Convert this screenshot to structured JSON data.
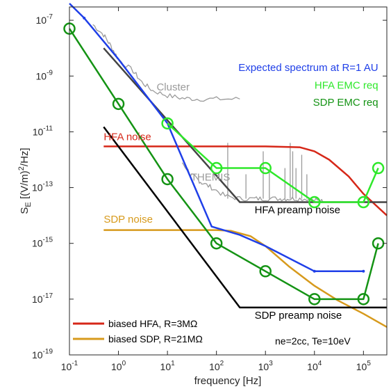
{
  "chart_data": {
    "type": "line",
    "title": "",
    "xlabel": "frequency [Hz]",
    "ylabel": {
      "main": "S",
      "sub": "E",
      "rest": " [(V/m)",
      "sup": "2",
      "end": "/Hz]"
    },
    "x_scale": "log",
    "y_scale": "log",
    "xlim": [
      0.1,
      300000
    ],
    "ylim": [
      1e-19,
      3e-07
    ],
    "x_ticks": [
      {
        "value": 0.1,
        "base": "10",
        "exp": "-1"
      },
      {
        "value": 1,
        "base": "10",
        "exp": "0"
      },
      {
        "value": 10,
        "base": "10",
        "exp": "1"
      },
      {
        "value": 100,
        "base": "10",
        "exp": "2"
      },
      {
        "value": 1000,
        "base": "10",
        "exp": "3"
      },
      {
        "value": 10000,
        "base": "10",
        "exp": "4"
      },
      {
        "value": 100000,
        "base": "10",
        "exp": "5"
      }
    ],
    "y_ticks": [
      {
        "value": 1e-19,
        "base": "10",
        "exp": "-19"
      },
      {
        "value": 1e-17,
        "base": "10",
        "exp": "-17"
      },
      {
        "value": 1e-15,
        "base": "10",
        "exp": "-15"
      },
      {
        "value": 1e-13,
        "base": "10",
        "exp": "-13"
      },
      {
        "value": 1e-11,
        "base": "10",
        "exp": "-11"
      },
      {
        "value": 1e-09,
        "base": "10",
        "exp": "-9"
      },
      {
        "value": 1e-07,
        "base": "10",
        "exp": "-7"
      }
    ],
    "grid": false,
    "series": [
      {
        "key": "cluster",
        "color": "#9a9a9a",
        "width": 1.3,
        "noisy": true,
        "x": [
          0.3,
          0.5,
          0.7,
          1,
          2,
          3,
          5,
          10,
          20,
          40,
          100,
          300
        ],
        "y": [
          7e-08,
          3e-08,
          1.2e-08,
          4e-09,
          1.5e-09,
          6e-10,
          3e-10,
          2e-10,
          1.6e-10,
          1.5e-10,
          1.5e-10,
          1.5e-10
        ]
      },
      {
        "key": "themis",
        "color": "#9a9a9a",
        "width": 1.3,
        "noisy": true,
        "x": [
          20,
          30,
          40,
          50,
          80,
          150,
          300,
          600,
          1000,
          2000,
          3000,
          5000,
          10000,
          15000
        ],
        "y": [
          8e-13,
          3e-13,
          2e-13,
          1.5e-13,
          1e-13,
          5e-14,
          4e-14,
          4e-14,
          4e-14,
          4e-14,
          4e-14,
          4e-14,
          4e-14,
          3e-14
        ],
        "spikes": [
          [
            170,
            4e-12
          ],
          [
            400,
            3e-13
          ],
          [
            900,
            2e-12
          ],
          [
            1200,
            4e-13
          ],
          [
            2500,
            5e-13
          ],
          [
            3200,
            4e-12
          ],
          [
            3600,
            2e-12
          ],
          [
            4200,
            5e-13
          ],
          [
            5500,
            1.5e-12
          ],
          [
            7000,
            3e-13
          ]
        ]
      },
      {
        "key": "hfa_noise",
        "color": "#d62718",
        "width": 2.5,
        "x": [
          0.5,
          1,
          10,
          100,
          1000,
          5000,
          10000,
          20000,
          50000,
          100000,
          300000
        ],
        "y": [
          3e-12,
          3e-12,
          3e-12,
          3e-12,
          3e-12,
          2.8e-12,
          2e-12,
          1e-12,
          2.5e-13,
          6e-14,
          1e-14
        ]
      },
      {
        "key": "sdp_noise",
        "color": "#d79a1c",
        "width": 2.5,
        "x": [
          0.5,
          1,
          10,
          100,
          200,
          500,
          1000,
          3000,
          10000,
          30000,
          100000,
          300000
        ],
        "y": [
          3e-15,
          3e-15,
          3e-15,
          3e-15,
          2.8e-15,
          1.8e-15,
          8e-16,
          1.5e-16,
          3e-17,
          9e-18,
          3e-18,
          1e-18
        ]
      },
      {
        "key": "hfa_preamp",
        "color": "#444444",
        "width": 2.5,
        "x": [
          0.5,
          300,
          300000
        ],
        "y": [
          1e-08,
          3e-14,
          3e-14
        ]
      },
      {
        "key": "sdp_preamp",
        "color": "#000000",
        "width": 2.5,
        "x": [
          0.5,
          300,
          300000
        ],
        "y": [
          1.5e-11,
          5e-18,
          5e-18
        ]
      },
      {
        "key": "expected",
        "color": "#1f3fe8",
        "width": 2.5,
        "x": [
          0.1,
          0.2,
          1,
          10,
          80,
          300,
          1000,
          10000,
          100000
        ],
        "y": [
          4e-07,
          1.2e-07,
          4e-09,
          2e-11,
          4e-15,
          2e-15,
          8e-16,
          1e-16,
          1e-16
        ],
        "marker_x": [
          0.2,
          10000,
          100000
        ],
        "marker_y": [
          1.2e-07,
          1e-16,
          1e-16
        ]
      },
      {
        "key": "hfa_emc",
        "color": "#2ee82a",
        "width": 2.5,
        "markers": true,
        "x": [
          10,
          100,
          1000,
          10000,
          100000,
          200000
        ],
        "y": [
          2e-11,
          5e-13,
          5e-13,
          3e-14,
          3e-14,
          5e-13
        ]
      },
      {
        "key": "sdp_emc",
        "color": "#149314",
        "width": 2.5,
        "markers": true,
        "x": [
          0.1,
          1,
          10,
          100,
          1000,
          10000,
          100000,
          200000
        ],
        "y": [
          5e-08,
          1e-10,
          2e-13,
          1e-15,
          1e-16,
          1e-17,
          1e-17,
          1e-15
        ]
      }
    ],
    "annotations": [
      {
        "text": "Cluster",
        "color": "#9a9a9a",
        "x": 6,
        "y": 3e-10,
        "anchor": "start"
      },
      {
        "text": "THEMIS",
        "color": "#9a9a9a",
        "x": 30,
        "y": 1.8e-13,
        "anchor": "start"
      },
      {
        "text": "HFA noise",
        "color": "#d62718",
        "x": 0.5,
        "y": 5e-12,
        "anchor": "start"
      },
      {
        "text": "SDP noise",
        "color": "#d79a1c",
        "x": 0.5,
        "y": 5.5e-15,
        "anchor": "start"
      },
      {
        "text": "HFA preamp noise",
        "color": "#000000",
        "x": 600,
        "y": 1.2e-14,
        "anchor": "start"
      },
      {
        "text": "SDP preamp noise",
        "color": "#000000",
        "x": 600,
        "y": 2e-18,
        "anchor": "start"
      },
      {
        "text": "Expected spectrum at R=1 AU",
        "color": "#1f3fe8",
        "x": 200000,
        "y": 1.5e-09,
        "anchor": "end"
      },
      {
        "text": "HFA EMC req",
        "color": "#2ee82a",
        "x": 200000,
        "y": 3.5e-10,
        "anchor": "end"
      },
      {
        "text": "SDP EMC req",
        "color": "#149314",
        "x": 200000,
        "y": 8.5e-11,
        "anchor": "end"
      }
    ],
    "legend": {
      "placement": "bottom-left",
      "entries": [
        {
          "label": "biased HFA, R=3MΩ",
          "color": "#d62718"
        },
        {
          "label": "biased SDP, R=21MΩ",
          "color": "#d79a1c"
        }
      ]
    },
    "note": "ne=2cc, Te=10eV"
  }
}
